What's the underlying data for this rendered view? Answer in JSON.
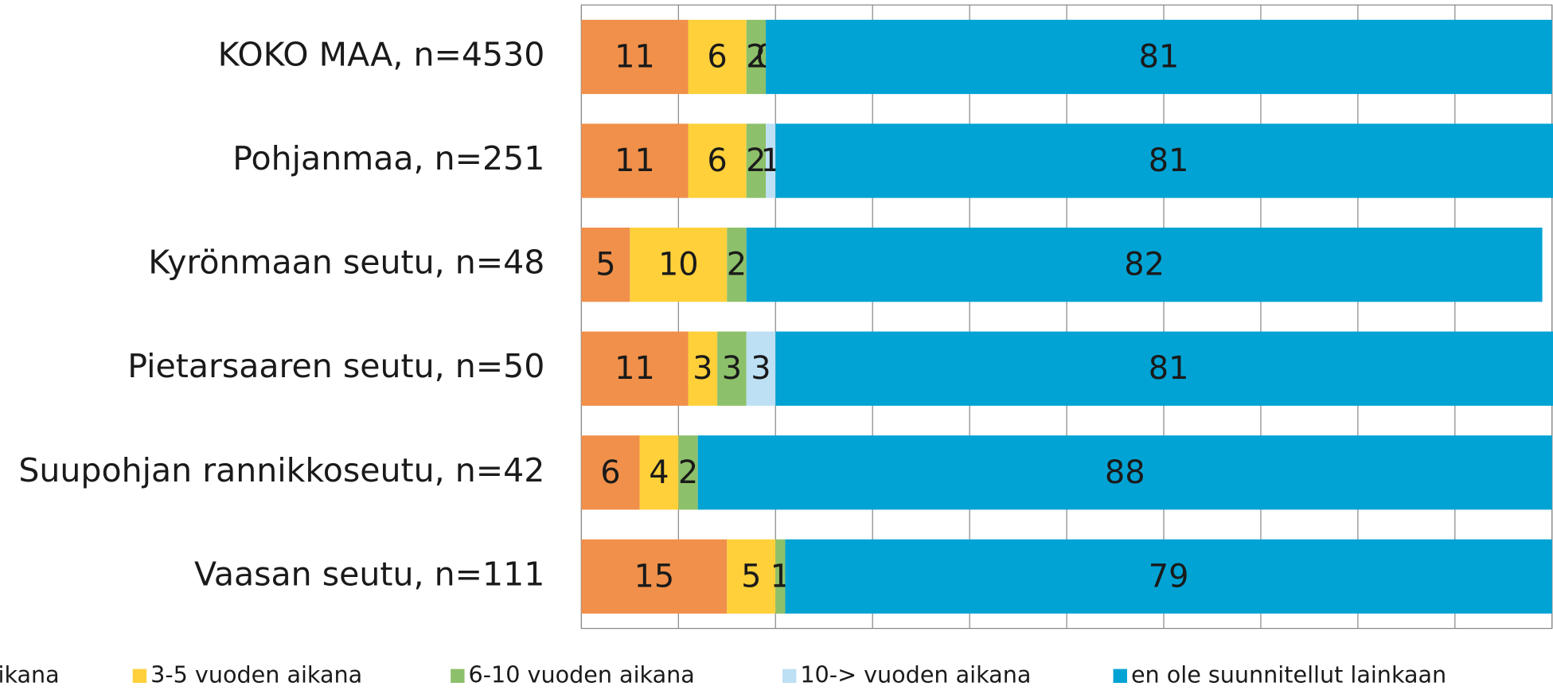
{
  "chart_data": {
    "type": "stacked-bar-horizontal",
    "categories": [
      "KOKO MAA, n=4530",
      "Pohjanmaa, n=251",
      "Kyrönmaan seutu, n=48",
      "Pietarsaaren seutu, n=50",
      "Suupohjan rannikkoseutu, n=42",
      "Vaasan seutu, n=111"
    ],
    "series": [
      {
        "name": "ikana",
        "color": "#F0904A",
        "values": [
          11,
          11,
          5,
          11,
          6,
          15
        ]
      },
      {
        "name": "3-5 vuoden aikana",
        "color": "#FFD03A",
        "values": [
          6,
          6,
          10,
          3,
          4,
          5
        ]
      },
      {
        "name": "6-10 vuoden aikana",
        "color": "#8DC06A",
        "values": [
          2,
          2,
          2,
          3,
          2,
          1
        ]
      },
      {
        "name": "10-> vuoden aikana",
        "color": "#BDE0F4",
        "values": [
          0,
          1,
          null,
          3,
          null,
          null
        ]
      },
      {
        "name": "en ole suunnitellut lainkaan",
        "color": "#00A3D4",
        "values": [
          81,
          81,
          82,
          81,
          88,
          79
        ]
      }
    ],
    "xlim": [
      0,
      100
    ],
    "xticks": [
      0,
      10,
      20,
      30,
      40,
      50,
      60,
      70,
      80,
      90,
      100
    ],
    "grid": true,
    "legend": "bottom"
  }
}
